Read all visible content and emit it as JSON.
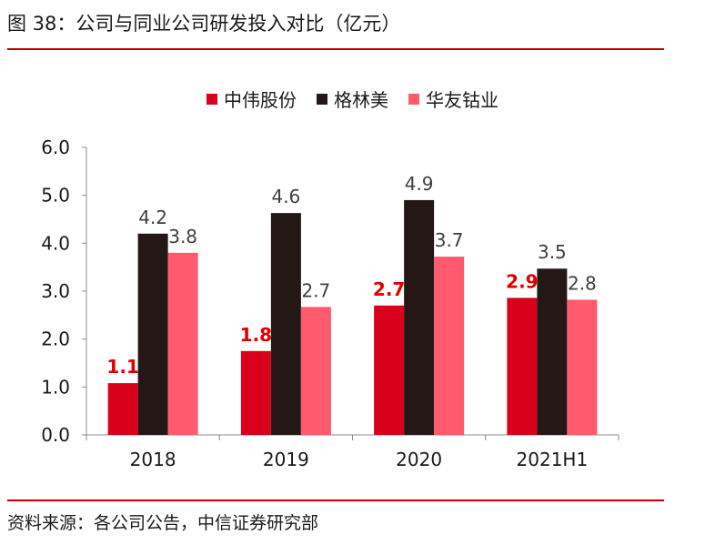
{
  "title": "图 38：公司与同业公司研发投入对比（亿元）",
  "source": "资料来源：各公司公告，中信证券研究部",
  "chart_data": {
    "type": "bar",
    "title": "",
    "xlabel": "",
    "ylabel": "",
    "categories": [
      "2018",
      "2019",
      "2020",
      "2021H1"
    ],
    "ylim": [
      0,
      6
    ],
    "yticks": [
      "0.0",
      "1.0",
      "2.0",
      "3.0",
      "4.0",
      "5.0",
      "6.0"
    ],
    "grid": false,
    "legend_position": "top",
    "series": [
      {
        "name": "中伟股份",
        "color": "#d9001b",
        "label_color": "#e00000",
        "label_bold": true,
        "values": [
          1.08,
          1.75,
          2.7,
          2.86
        ],
        "labels": [
          "1.1",
          "1.8",
          "2.7",
          "2.9"
        ]
      },
      {
        "name": "格林美",
        "color": "#231815",
        "label_color": "#404040",
        "label_bold": false,
        "values": [
          4.2,
          4.63,
          4.9,
          3.47
        ],
        "labels": [
          "4.2",
          "4.6",
          "4.9",
          "3.5"
        ]
      },
      {
        "name": "华友钴业",
        "color": "#ff5a6e",
        "label_color": "#404040",
        "label_bold": false,
        "values": [
          3.8,
          2.67,
          3.72,
          2.82
        ],
        "labels": [
          "3.8",
          "2.7",
          "3.7",
          "2.8"
        ]
      }
    ]
  }
}
